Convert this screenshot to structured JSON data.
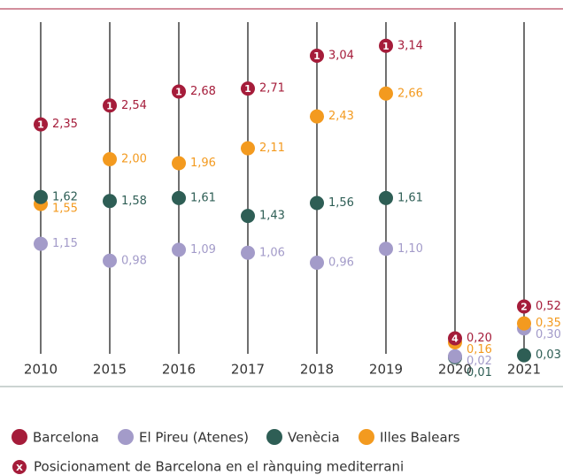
{
  "chart_data": {
    "type": "dot",
    "categories": [
      "2010",
      "2015",
      "2016",
      "2017",
      "2018",
      "2019",
      "2020",
      "2021"
    ],
    "series": [
      {
        "name": "Barcelona",
        "color": "#a51c3a",
        "values": [
          2.35,
          2.54,
          2.68,
          2.71,
          3.04,
          3.14,
          0.2,
          0.52
        ],
        "value_labels": [
          "2,35",
          "2,54",
          "2,68",
          "2,71",
          "3,04",
          "3,14",
          "0,20",
          "0,52"
        ]
      },
      {
        "name": "El Pireu (Atenes)",
        "color": "#a39bc9",
        "values": [
          1.15,
          0.98,
          1.09,
          1.06,
          0.96,
          1.1,
          0.02,
          0.3
        ],
        "value_labels": [
          "1,15",
          "0,98",
          "1,09",
          "1,06",
          "0,96",
          "1,10",
          "0,02",
          "0,30"
        ]
      },
      {
        "name": "Venècia",
        "color": "#2e5e55",
        "values": [
          1.62,
          1.58,
          1.61,
          1.43,
          1.56,
          1.61,
          0.01,
          0.03
        ],
        "value_labels": [
          "1,62",
          "1,58",
          "1,61",
          "1,43",
          "1,56",
          "1,61",
          "0,01",
          "0,03"
        ]
      },
      {
        "name": "Illes Balears",
        "color": "#f39a1f",
        "values": [
          1.55,
          2.0,
          1.96,
          2.11,
          2.43,
          2.66,
          0.16,
          0.35
        ],
        "value_labels": [
          "1,55",
          "2,00",
          "1,96",
          "2,11",
          "2,43",
          "2,66",
          "0,16",
          "0,35"
        ]
      }
    ],
    "ranks": [
      1,
      1,
      1,
      1,
      1,
      1,
      4,
      2
    ],
    "rank_symbol": "X",
    "rank_note": "Posicionament de Barcelona en el rànquing mediterrani",
    "ylim": [
      0,
      3.2
    ]
  }
}
